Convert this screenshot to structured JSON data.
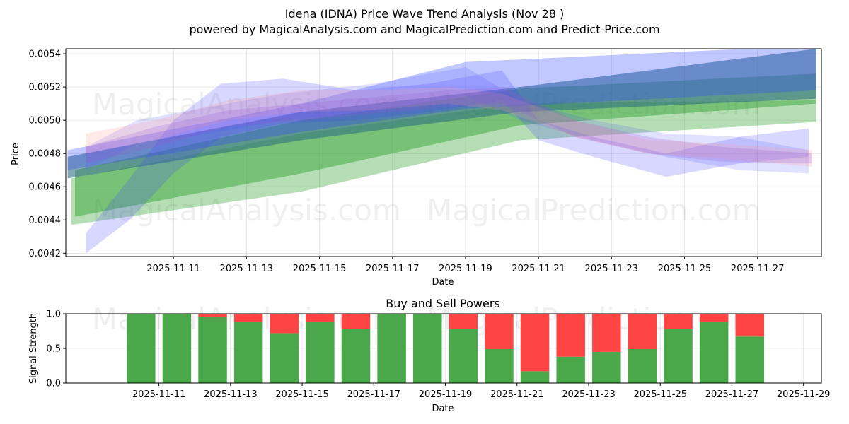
{
  "chart_data": [
    {
      "type": "area",
      "title": "Idena (IDNA) Price Wave Trend Analysis (Nov 28 )",
      "subtitle": "powered by MagicalAnalysis.com and MagicalPrediction.com and Predict-Price.com",
      "xlabel": "Date",
      "ylabel": "Price",
      "ylim": [
        0.00418,
        0.00543
      ],
      "xlim_days": [
        8.05,
        28.75
      ],
      "x_ticks": [
        "2025-11-11",
        "2025-11-13",
        "2025-11-15",
        "2025-11-17",
        "2025-11-19",
        "2025-11-21",
        "2025-11-23",
        "2025-11-25",
        "2025-11-27"
      ],
      "x_tick_days": [
        11,
        13,
        15,
        17,
        19,
        21,
        23,
        25,
        27
      ],
      "y_ticks": [
        "0.0042",
        "0.0044",
        "0.0046",
        "0.0048",
        "0.0050",
        "0.0052",
        "0.0054"
      ],
      "y_tick_values": [
        0.0042,
        0.0044,
        0.0046,
        0.0048,
        0.005,
        0.0052,
        0.0054
      ],
      "grid": true,
      "watermarks": [
        "MagicalAnalysis.com",
        "MagicalPrediction.com"
      ],
      "series": [
        {
          "name": "green trend band 1",
          "color": "#2ca02c",
          "opacity": 0.35,
          "x": [
            8.2,
            14.5,
            20.5,
            28.6
          ],
          "lower": [
            0.00437,
            0.00457,
            0.00488,
            0.00499
          ],
          "upper": [
            0.00465,
            0.00492,
            0.0051,
            0.00512
          ]
        },
        {
          "name": "green trend band 2",
          "color": "#2ca02c",
          "opacity": 0.45,
          "x": [
            8.3,
            14.5,
            20.5,
            28.6
          ],
          "lower": [
            0.00442,
            0.00468,
            0.00497,
            0.0051
          ],
          "upper": [
            0.0047,
            0.005,
            0.00519,
            0.00528
          ]
        },
        {
          "name": "teal trend band",
          "color": "#2f6f7f",
          "opacity": 0.6,
          "x": [
            8.1,
            14.5,
            20.5,
            28.6
          ],
          "lower": [
            0.00465,
            0.00488,
            0.00505,
            0.00513
          ],
          "upper": [
            0.00478,
            0.00505,
            0.0052,
            0.00543
          ]
        },
        {
          "name": "blue trend band 1",
          "color": "#3344ff",
          "opacity": 0.3,
          "x": [
            8.1,
            14.5,
            19.0,
            28.6
          ],
          "lower": [
            0.0047,
            0.00493,
            0.00507,
            0.00518
          ],
          "upper": [
            0.00482,
            0.0051,
            0.00535,
            0.00545
          ]
        },
        {
          "name": "blue wave 1",
          "color": "#4a4aff",
          "opacity": 0.22,
          "x": [
            8.6,
            9.8,
            11.0,
            12.3,
            14.0,
            16.0,
            18.0,
            20.0,
            21.0,
            22.5,
            24.5,
            26.5,
            28.4
          ],
          "lower": [
            0.0042,
            0.0044,
            0.00468,
            0.0049,
            0.00498,
            0.005,
            0.00505,
            0.00512,
            0.00488,
            0.00478,
            0.00466,
            0.00474,
            0.00478
          ],
          "upper": [
            0.00432,
            0.00465,
            0.005,
            0.00522,
            0.00525,
            0.00518,
            0.00522,
            0.0053,
            0.005,
            0.0049,
            0.0048,
            0.0049,
            0.00495
          ]
        },
        {
          "name": "blue wave 2",
          "color": "#5555ff",
          "opacity": 0.18,
          "x": [
            8.6,
            10.0,
            12.0,
            14.0,
            16.5,
            19.0,
            20.5,
            22.5,
            24.5,
            26.5,
            28.4
          ],
          "lower": [
            0.0047,
            0.00486,
            0.00492,
            0.005,
            0.00505,
            0.00515,
            0.005,
            0.00488,
            0.00478,
            0.0047,
            0.00468
          ],
          "upper": [
            0.00484,
            0.005,
            0.00508,
            0.00516,
            0.00522,
            0.00532,
            0.00512,
            0.005,
            0.00492,
            0.0049,
            0.00482
          ]
        },
        {
          "name": "pink wave 1",
          "color": "#ff9999",
          "opacity": 0.22,
          "x": [
            8.6,
            10.5,
            12.5,
            14.5,
            16.5,
            18.5,
            20.0,
            22.0,
            24.0,
            26.0,
            28.5
          ],
          "lower": [
            0.0048,
            0.00488,
            0.005,
            0.00505,
            0.00506,
            0.0051,
            0.00506,
            0.0049,
            0.0048,
            0.00477,
            0.00472
          ],
          "upper": [
            0.00492,
            0.005,
            0.00512,
            0.00518,
            0.00518,
            0.0052,
            0.00516,
            0.005,
            0.00488,
            0.00486,
            0.00482
          ]
        },
        {
          "name": "purple wave",
          "color": "#9955cc",
          "opacity": 0.22,
          "x": [
            8.6,
            10.5,
            12.5,
            14.5,
            16.5,
            18.5,
            20.0,
            22.0,
            24.0,
            26.0,
            28.5
          ],
          "lower": [
            0.00474,
            0.00484,
            0.00496,
            0.005,
            0.00504,
            0.00508,
            0.0051,
            0.0049,
            0.0048,
            0.00475,
            0.00474
          ],
          "upper": [
            0.00484,
            0.00496,
            0.00506,
            0.0051,
            0.00514,
            0.00518,
            0.0052,
            0.005,
            0.0049,
            0.00484,
            0.0048
          ]
        }
      ]
    },
    {
      "type": "bar",
      "title": "Buy and Sell Powers",
      "xlabel": "Date",
      "ylabel": "Signal Strength",
      "ylim": [
        0,
        1.0
      ],
      "xlim_days": [
        8.4,
        29.5
      ],
      "x_ticks": [
        "2025-11-11",
        "2025-11-13",
        "2025-11-15",
        "2025-11-17",
        "2025-11-19",
        "2025-11-21",
        "2025-11-23",
        "2025-11-25",
        "2025-11-27",
        "2025-11-29"
      ],
      "x_tick_days": [
        11,
        13,
        15,
        17,
        19,
        21,
        23,
        25,
        27,
        29
      ],
      "y_ticks": [
        "0.0",
        "0.5",
        "1.0"
      ],
      "y_tick_values": [
        0.0,
        0.5,
        1.0
      ],
      "grid": true,
      "watermarks": [
        "MagicalAnalysis.com",
        "MagicalPrediction.com"
      ],
      "categories_days": [
        10,
        11,
        12,
        13,
        14,
        15,
        16,
        17,
        18,
        19,
        20,
        21,
        22,
        23,
        24,
        25,
        26,
        27
      ],
      "series": [
        {
          "name": "Buy",
          "color": "#4aa84a",
          "values": [
            1.0,
            1.0,
            0.95,
            0.88,
            0.72,
            0.88,
            0.78,
            1.0,
            1.0,
            0.78,
            0.49,
            0.17,
            0.38,
            0.45,
            0.49,
            0.78,
            0.88,
            0.67
          ]
        },
        {
          "name": "Sell",
          "color": "#ff4444",
          "values": [
            0.0,
            0.0,
            0.05,
            0.12,
            0.28,
            0.12,
            0.22,
            0.0,
            0.0,
            0.22,
            0.51,
            0.83,
            0.62,
            0.55,
            0.51,
            0.22,
            0.12,
            0.33
          ]
        }
      ]
    }
  ]
}
